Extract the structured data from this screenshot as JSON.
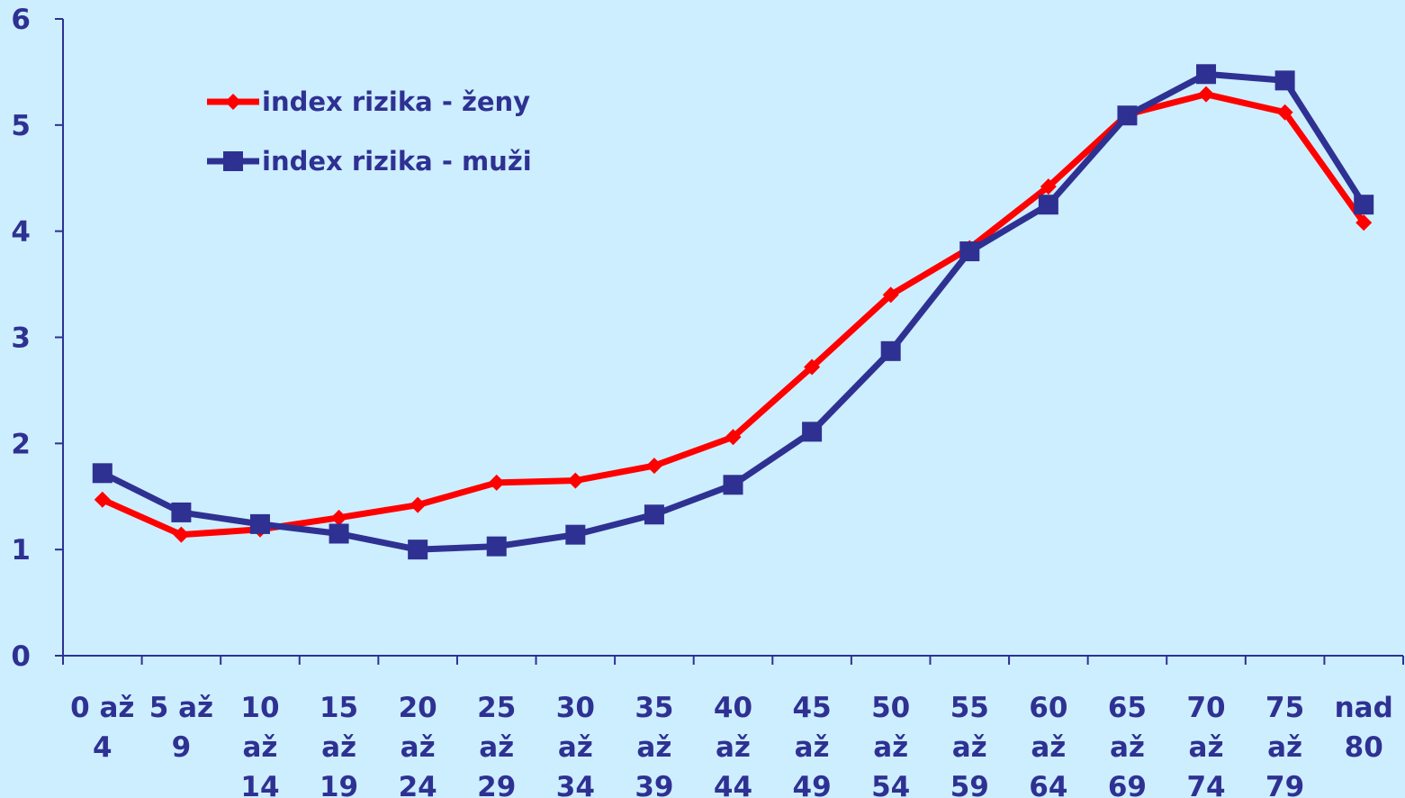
{
  "chart_data": {
    "type": "line",
    "title": "",
    "xlabel": "",
    "ylabel": "",
    "ylim": [
      0,
      6
    ],
    "y_ticks": [
      "0",
      "1",
      "2",
      "3",
      "4",
      "5",
      "6"
    ],
    "grid": false,
    "legend_position": "top-left",
    "categories": [
      [
        "0 až",
        "4"
      ],
      [
        "5 až",
        "9"
      ],
      [
        "10",
        "až",
        "14"
      ],
      [
        "15",
        "až",
        "19"
      ],
      [
        "20",
        "až",
        "24"
      ],
      [
        "25",
        "až",
        "29"
      ],
      [
        "30",
        "až",
        "34"
      ],
      [
        "35",
        "až",
        "39"
      ],
      [
        "40",
        "až",
        "44"
      ],
      [
        "45",
        "až",
        "49"
      ],
      [
        "50",
        "až",
        "54"
      ],
      [
        "55",
        "až",
        "59"
      ],
      [
        "60",
        "až",
        "64"
      ],
      [
        "65",
        "až",
        "69"
      ],
      [
        "70",
        "až",
        "74"
      ],
      [
        "75",
        "až",
        "79"
      ],
      [
        "nad",
        "80"
      ]
    ],
    "series": [
      {
        "name": "index rizika - ženy",
        "color": "#ff0000",
        "marker": "diamond",
        "values": [
          1.47,
          1.14,
          1.19,
          1.3,
          1.42,
          1.63,
          1.65,
          1.79,
          2.06,
          2.72,
          3.4,
          3.84,
          4.42,
          5.1,
          5.29,
          5.12,
          4.08
        ]
      },
      {
        "name": "index rizika - muži",
        "color": "#2e3192",
        "marker": "square",
        "values": [
          1.72,
          1.35,
          1.24,
          1.15,
          1.0,
          1.03,
          1.14,
          1.33,
          1.61,
          2.11,
          2.87,
          3.81,
          4.25,
          5.09,
          5.48,
          5.42,
          4.25
        ]
      }
    ]
  }
}
